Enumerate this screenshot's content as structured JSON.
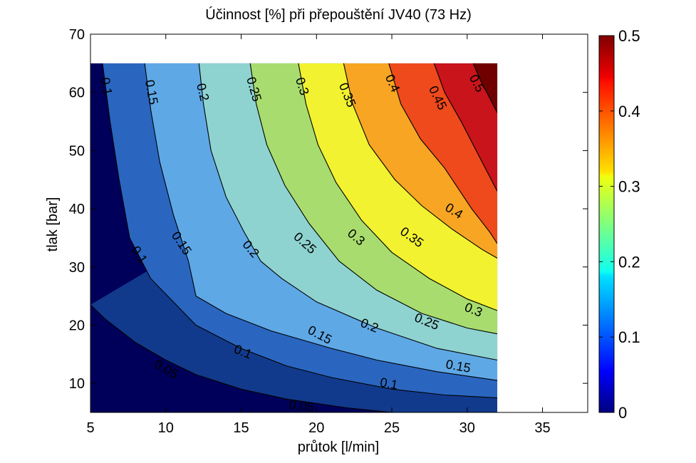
{
  "chart_data": {
    "type": "contour",
    "title": "Účinnost [%] při přepouštění JV40 (73 Hz)",
    "xlabel": "průtok [l/min]",
    "ylabel": "tlak [bar]",
    "xlim": [
      5,
      38
    ],
    "ylim": [
      5,
      70
    ],
    "data_extent": {
      "x": [
        5,
        32
      ],
      "y": [
        5,
        65
      ]
    },
    "xticks": [
      5,
      10,
      15,
      20,
      25,
      30,
      35
    ],
    "yticks": [
      10,
      20,
      30,
      40,
      50,
      60,
      70
    ],
    "colorbar": {
      "range": [
        0,
        0.5
      ],
      "ticks": [
        0,
        0.1,
        0.2,
        0.3,
        0.4,
        0.5
      ],
      "colormap": "jet"
    },
    "levels": [
      0.05,
      0.1,
      0.15,
      0.2,
      0.25,
      0.3,
      0.35,
      0.4,
      0.45,
      0.5
    ],
    "fill_colors": [
      "#00005a",
      "#123a8c",
      "#2a66c0",
      "#5fa8e6",
      "#8fd3d0",
      "#a8dc6e",
      "#f2f230",
      "#f7a523",
      "#ee4a1c",
      "#c8141a",
      "#700000"
    ],
    "contours": [
      {
        "level": 0.05,
        "points": [
          [
            5,
            23.5
          ],
          [
            6,
            21
          ],
          [
            8,
            17
          ],
          [
            10,
            14
          ],
          [
            12,
            11.5
          ],
          [
            15,
            9
          ],
          [
            18,
            7.3
          ],
          [
            22,
            5.8
          ],
          [
            25,
            5
          ]
        ]
      },
      {
        "level": 0.1,
        "points": [
          [
            5.8,
            65
          ],
          [
            6.3,
            55
          ],
          [
            6.9,
            45
          ],
          [
            7.6,
            35
          ],
          [
            9,
            28
          ],
          [
            12,
            20
          ],
          [
            15,
            16
          ],
          [
            18,
            13
          ],
          [
            21,
            11
          ],
          [
            25,
            9
          ],
          [
            28.5,
            8
          ],
          [
            32,
            7.5
          ]
        ]
      },
      {
        "level": 0.15,
        "points": [
          [
            8.6,
            65
          ],
          [
            9,
            57
          ],
          [
            9.6,
            48
          ],
          [
            10.5,
            39
          ],
          [
            11.5,
            31
          ],
          [
            12,
            25
          ],
          [
            14,
            22
          ],
          [
            17,
            19
          ],
          [
            21,
            16
          ],
          [
            24,
            14
          ],
          [
            28,
            12
          ],
          [
            32,
            10.5
          ]
        ]
      },
      {
        "level": 0.2,
        "points": [
          [
            12.2,
            65
          ],
          [
            12.5,
            58
          ],
          [
            13,
            50
          ],
          [
            14,
            42
          ],
          [
            15.2,
            36
          ],
          [
            16.3,
            31
          ],
          [
            17.7,
            28
          ],
          [
            20,
            24
          ],
          [
            24,
            19.5
          ],
          [
            28,
            16
          ],
          [
            32,
            14
          ]
        ]
      },
      {
        "level": 0.25,
        "points": [
          [
            15.6,
            65
          ],
          [
            16,
            58
          ],
          [
            16.7,
            51
          ],
          [
            17.9,
            44
          ],
          [
            19.5,
            37.5
          ],
          [
            21.5,
            31
          ],
          [
            24,
            26
          ],
          [
            27,
            22
          ],
          [
            30,
            19.5
          ],
          [
            32,
            18.5
          ]
        ]
      },
      {
        "level": 0.3,
        "points": [
          [
            18.8,
            65
          ],
          [
            19.3,
            58
          ],
          [
            20.1,
            51
          ],
          [
            21.3,
            44.5
          ],
          [
            23,
            38
          ],
          [
            25,
            32.5
          ],
          [
            27.5,
            28
          ],
          [
            30,
            24.5
          ],
          [
            32,
            22.5
          ]
        ]
      },
      {
        "level": 0.35,
        "points": [
          [
            21.8,
            65
          ],
          [
            22.4,
            58
          ],
          [
            23.5,
            51
          ],
          [
            25.2,
            45
          ],
          [
            27,
            40.5
          ],
          [
            29,
            36.5
          ],
          [
            31,
            33
          ],
          [
            32,
            31.5
          ]
        ]
      },
      {
        "level": 0.4,
        "points": [
          [
            24.8,
            65
          ],
          [
            25.6,
            58
          ],
          [
            26.9,
            52
          ],
          [
            28.5,
            47
          ],
          [
            30.3,
            40
          ],
          [
            31.5,
            36
          ],
          [
            32,
            34
          ]
        ]
      },
      {
        "level": 0.45,
        "points": [
          [
            27.8,
            65
          ],
          [
            28.5,
            60
          ],
          [
            29.6,
            55
          ],
          [
            30.8,
            49
          ],
          [
            32,
            43
          ]
        ]
      },
      {
        "level": 0.5,
        "points": [
          [
            30.4,
            65
          ],
          [
            30.9,
            62
          ],
          [
            31.5,
            59
          ],
          [
            32,
            56.5
          ]
        ]
      }
    ],
    "contour_labels": [
      {
        "text": "0.1",
        "x": 6.0,
        "y": 61,
        "rot": 80
      },
      {
        "text": "0.15",
        "x": 9.0,
        "y": 60,
        "rot": 80
      },
      {
        "text": "0.2",
        "x": 12.4,
        "y": 60,
        "rot": 76
      },
      {
        "text": "0.25",
        "x": 15.8,
        "y": 60.5,
        "rot": 74
      },
      {
        "text": "0.3",
        "x": 19.0,
        "y": 61,
        "rot": 72
      },
      {
        "text": "0.35",
        "x": 22.0,
        "y": 59.5,
        "rot": 68
      },
      {
        "text": "0.4",
        "x": 25.0,
        "y": 61.5,
        "rot": 66
      },
      {
        "text": "0.45",
        "x": 28.0,
        "y": 59,
        "rot": 64
      },
      {
        "text": "0.5",
        "x": 30.6,
        "y": 61.5,
        "rot": 62
      },
      {
        "text": "0.1",
        "x": 8.2,
        "y": 32,
        "rot": 56
      },
      {
        "text": "0.15",
        "x": 11.0,
        "y": 34,
        "rot": 56
      },
      {
        "text": "0.2",
        "x": 15.6,
        "y": 33,
        "rot": 50
      },
      {
        "text": "0.25",
        "x": 19.2,
        "y": 34,
        "rot": 42
      },
      {
        "text": "0.3",
        "x": 22.6,
        "y": 35,
        "rot": 40
      },
      {
        "text": "0.35",
        "x": 26.3,
        "y": 35,
        "rot": 36
      },
      {
        "text": "0.4",
        "x": 29.1,
        "y": 39.5,
        "rot": 32
      },
      {
        "text": "0.3",
        "x": 30.4,
        "y": 22.5,
        "rot": 22
      },
      {
        "text": "0.25",
        "x": 27.3,
        "y": 20.5,
        "rot": 22
      },
      {
        "text": "0.2",
        "x": 23.5,
        "y": 19.8,
        "rot": 22
      },
      {
        "text": "0.15",
        "x": 20.2,
        "y": 18.2,
        "rot": 28
      },
      {
        "text": "0.1",
        "x": 15.1,
        "y": 15.3,
        "rot": 22
      },
      {
        "text": "0.05",
        "x": 10.0,
        "y": 12.3,
        "rot": 30
      },
      {
        "text": "0.15",
        "x": 29.4,
        "y": 12.8,
        "rot": 10
      },
      {
        "text": "0.1",
        "x": 24.8,
        "y": 9.8,
        "rot": 10
      },
      {
        "text": "0.05",
        "x": 19.0,
        "y": 6.0,
        "rot": 8
      }
    ]
  }
}
